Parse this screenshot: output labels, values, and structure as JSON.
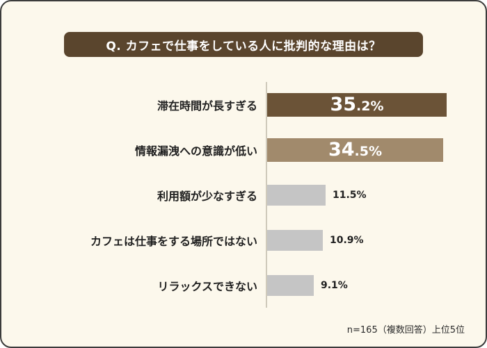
{
  "title": "Q. カフェで仕事をしている人に批判的な理由は？",
  "footnote": "n=165（複数回答）上位5位",
  "colors": {
    "background": "#fcf8ec",
    "border": "#3b3b3b",
    "title_bg": "#5a452d",
    "title_text": "#ffffff",
    "bar_rank1": "#6b5337",
    "bar_rank2": "#a18a6c",
    "bar_gray": "#c5c5c5",
    "axis_line": "#cfcabb"
  },
  "chart_data": {
    "type": "bar",
    "orientation": "horizontal",
    "title": "Q. カフェで仕事をしている人に批判的な理由は？",
    "xlabel": "",
    "ylabel": "",
    "xlim": [
      0,
      36
    ],
    "grid": false,
    "legend": false,
    "categories": [
      "滞在時間が長すぎる",
      "情報漏洩への意識が低い",
      "利用額が少なすぎる",
      "カフェは仕事をする場所ではない",
      "リラックスできない"
    ],
    "values": [
      35.2,
      34.5,
      11.5,
      10.9,
      9.1
    ],
    "value_labels": [
      "35.2%",
      "34.5%",
      "11.5%",
      "10.9%",
      "9.1%"
    ],
    "rows": [
      {
        "label": "滞在時間が長すぎる",
        "value": 35.2,
        "pct_main": "35",
        "pct_sub": ".2%",
        "color": "#6b5337",
        "label_inside": true
      },
      {
        "label": "情報漏洩への意識が低い",
        "value": 34.5,
        "pct_main": "34",
        "pct_sub": ".5%",
        "color": "#a18a6c",
        "label_inside": true
      },
      {
        "label": "利用額が少なすぎる",
        "value": 11.5,
        "display": "11.5%",
        "color": "#c5c5c5",
        "label_inside": false
      },
      {
        "label": "カフェは仕事をする場所ではない",
        "value": 10.9,
        "display": "10.9%",
        "color": "#c5c5c5",
        "label_inside": false
      },
      {
        "label": "リラックスできない",
        "value": 9.1,
        "display": "9.1%",
        "color": "#c5c5c5",
        "label_inside": false
      }
    ],
    "source_note": "n=165（複数回答）上位5位"
  }
}
